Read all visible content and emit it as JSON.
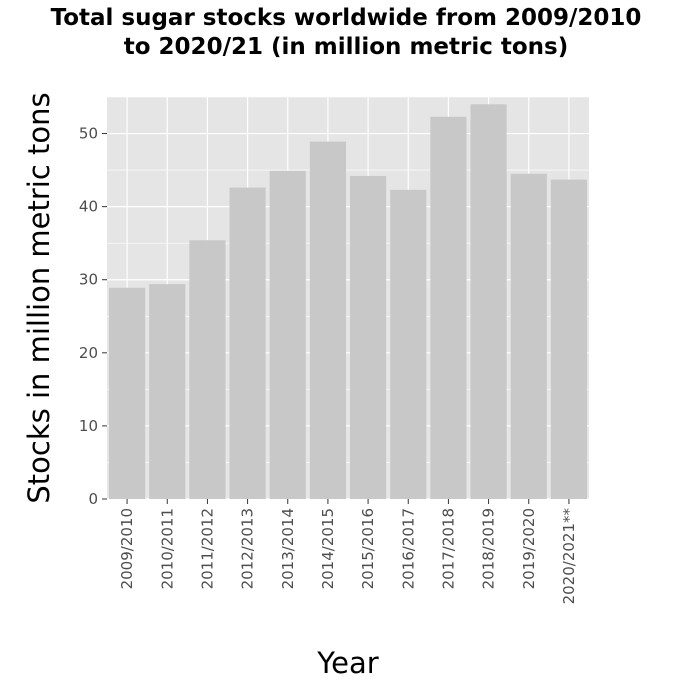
{
  "chart_data": {
    "type": "bar",
    "title_lines": [
      "Total sugar stocks worldwide from 2009/2010",
      "to 2020/21 (in million metric tons)"
    ],
    "xlabel": "Year",
    "ylabel": "Stocks in million metric tons",
    "categories": [
      "2009/2010",
      "2010/2011",
      "2011/2012",
      "2012/2013",
      "2013/2014",
      "2014/2015",
      "2015/2016",
      "2016/2017",
      "2017/2018",
      "2018/2019",
      "2019/2020",
      "2020/2021**"
    ],
    "values": [
      28.9,
      29.4,
      35.4,
      42.6,
      44.9,
      48.9,
      44.2,
      42.3,
      52.3,
      54.0,
      44.5,
      43.7
    ],
    "ylim": [
      0,
      55
    ],
    "yticks": [
      0,
      10,
      20,
      30,
      40,
      50
    ],
    "grid": true,
    "colors": {
      "bar": "#c8c8c8",
      "panel": "#e5e5e5",
      "grid": "#ffffff"
    }
  }
}
